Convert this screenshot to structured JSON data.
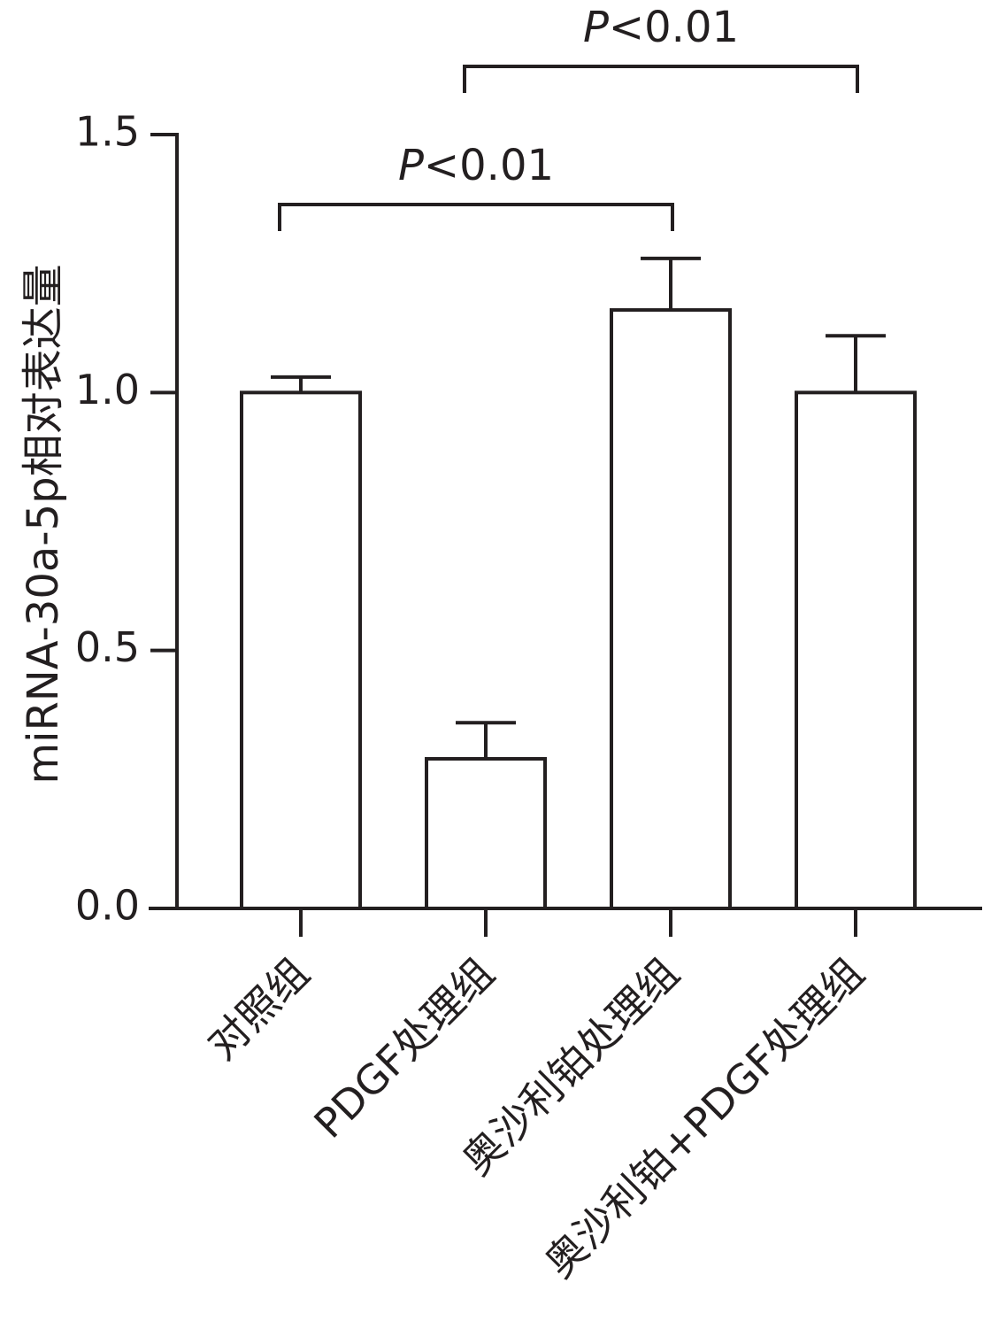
{
  "chart_data": {
    "type": "bar",
    "title": "",
    "xlabel": "",
    "ylabel": "miRNA-30a-5p相对表达量",
    "ylim": [
      0,
      1.5
    ],
    "yticks": [
      0.0,
      0.5,
      1.0,
      1.5
    ],
    "ytick_labels": [
      "0.0",
      "0.5",
      "1.0",
      "1.5"
    ],
    "categories": [
      "对照组",
      "PDGF处理组",
      "奥沙利铂处理组",
      "奥沙利铂+PDGF处理组"
    ],
    "values": [
      1.0,
      0.29,
      1.16,
      1.0
    ],
    "errors": [
      0.03,
      0.07,
      0.1,
      0.11
    ],
    "grid": false,
    "significance": [
      {
        "from": 0,
        "to": 2,
        "label_italic": "P",
        "label_rest": "<0.01"
      },
      {
        "from": 1,
        "to": 3,
        "label_italic": "P",
        "label_rest": "<0.01"
      }
    ],
    "colors": {
      "bar_fill": "#ffffff",
      "stroke": "#231f20"
    }
  }
}
